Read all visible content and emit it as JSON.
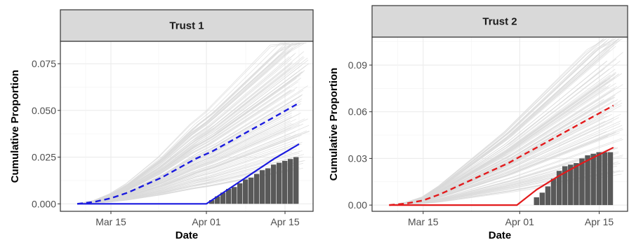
{
  "chart_data": [
    {
      "type": "line",
      "strip_label": "Trust 1",
      "xlabel": "Date",
      "ylabel": "Cumulative Proportion",
      "x_ticks": [
        "Mar 15",
        "Apr 01",
        "Apr 15"
      ],
      "x_tick_days": [
        14,
        31,
        45
      ],
      "xlim_days": [
        5,
        50
      ],
      "ylim": [
        -0.004,
        0.087
      ],
      "y_ticks": [
        0.0,
        0.025,
        0.05,
        0.075
      ],
      "y_tick_labels": [
        "0.000",
        "0.025",
        "0.050",
        "0.075"
      ],
      "grid": true,
      "accent_color": "#1a1adf",
      "dashed_series": {
        "x_days": [
          8,
          11,
          14,
          17,
          20,
          23,
          26,
          29,
          32,
          35,
          38,
          41,
          44,
          47.5
        ],
        "y": [
          0,
          0.001,
          0.003,
          0.006,
          0.01,
          0.014,
          0.019,
          0.024,
          0.028,
          0.033,
          0.038,
          0.043,
          0.048,
          0.054
        ]
      },
      "solid_series": {
        "x_days": [
          8,
          31,
          35,
          39,
          43,
          47.5
        ],
        "y": [
          0,
          0,
          0.008,
          0.016,
          0.024,
          0.032
        ]
      },
      "bars": {
        "x_days": [
          32,
          33,
          34,
          35,
          36,
          37,
          38,
          39,
          40,
          41,
          42,
          43,
          44,
          45,
          46,
          47
        ],
        "y": [
          0.002,
          0.004,
          0.006,
          0.008,
          0.009,
          0.011,
          0.013,
          0.014,
          0.016,
          0.018,
          0.019,
          0.021,
          0.022,
          0.023,
          0.024,
          0.025
        ]
      }
    },
    {
      "type": "line",
      "strip_label": "Trust 2",
      "xlabel": "Date",
      "ylabel": "Cumulative Proportion",
      "x_ticks": [
        "Mar 15",
        "Apr 01",
        "Apr 15"
      ],
      "x_tick_days": [
        14,
        31,
        45
      ],
      "xlim_days": [
        5,
        50
      ],
      "ylim": [
        -0.004,
        0.108
      ],
      "y_ticks": [
        0.0,
        0.03,
        0.06,
        0.09
      ],
      "y_tick_labels": [
        "0.00",
        "0.03",
        "0.06",
        "0.09"
      ],
      "grid": true,
      "accent_color": "#e31a1c",
      "dashed_series": {
        "x_days": [
          8,
          11,
          14,
          17,
          20,
          23,
          26,
          29,
          32,
          35,
          38,
          41,
          44,
          47.5
        ],
        "y": [
          0,
          0.001,
          0.003,
          0.007,
          0.012,
          0.017,
          0.022,
          0.027,
          0.033,
          0.039,
          0.045,
          0.051,
          0.057,
          0.064
        ]
      },
      "solid_series": {
        "x_days": [
          8,
          30.5,
          34,
          38,
          42,
          47.5
        ],
        "y": [
          0,
          0,
          0.01,
          0.019,
          0.027,
          0.037
        ]
      },
      "bars": {
        "x_days": [
          34,
          35,
          36,
          37,
          38,
          39,
          40,
          41,
          42,
          43,
          44,
          45,
          46,
          47
        ],
        "y": [
          0.005,
          0.008,
          0.012,
          0.017,
          0.022,
          0.025,
          0.026,
          0.027,
          0.03,
          0.032,
          0.033,
          0.034,
          0.034,
          0.034
        ]
      }
    }
  ]
}
